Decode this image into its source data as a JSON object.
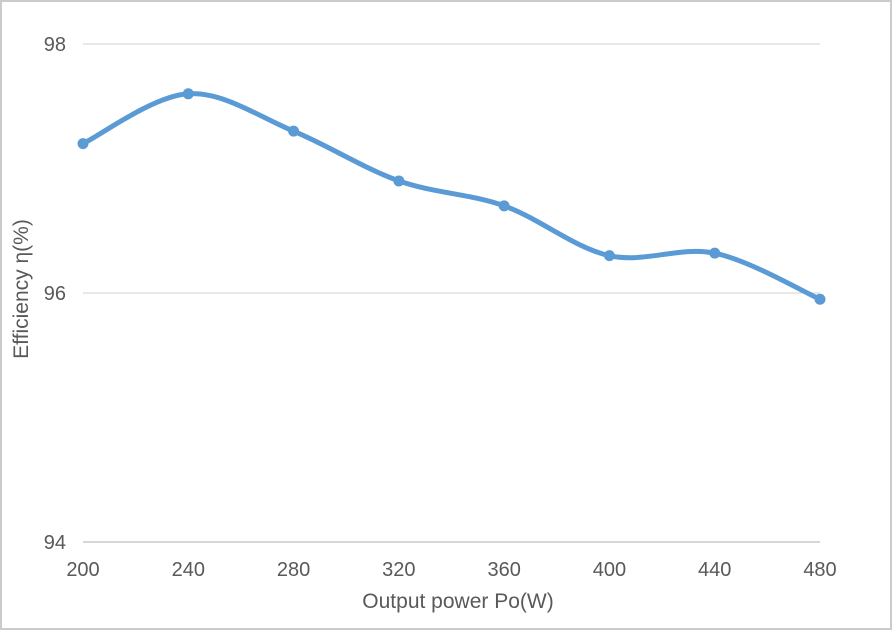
{
  "chart_data": {
    "type": "line",
    "title": "",
    "x": [
      200,
      240,
      280,
      320,
      360,
      400,
      440,
      480
    ],
    "series": [
      {
        "name": "Efficiency",
        "values": [
          97.2,
          97.6,
          97.3,
          96.9,
          96.7,
          96.3,
          96.32,
          95.95
        ]
      }
    ],
    "xlabel": "Output power Po(W)",
    "ylabel": "Efficiency η(%)",
    "xlim": [
      200,
      480
    ],
    "ylim": [
      94,
      98
    ],
    "xticks": [
      200,
      240,
      280,
      320,
      360,
      400,
      440,
      480
    ],
    "yticks": [
      94,
      96,
      98
    ],
    "grid": "horizontal-only",
    "legend": "none",
    "smooth": true,
    "line_color": "#5B9BD5",
    "marker": "circle",
    "marker_color": "#5B9BD5",
    "gridline_color": "#D9D9D9",
    "axis_line_color": "#C9C9C9",
    "text_color": "#595959"
  }
}
